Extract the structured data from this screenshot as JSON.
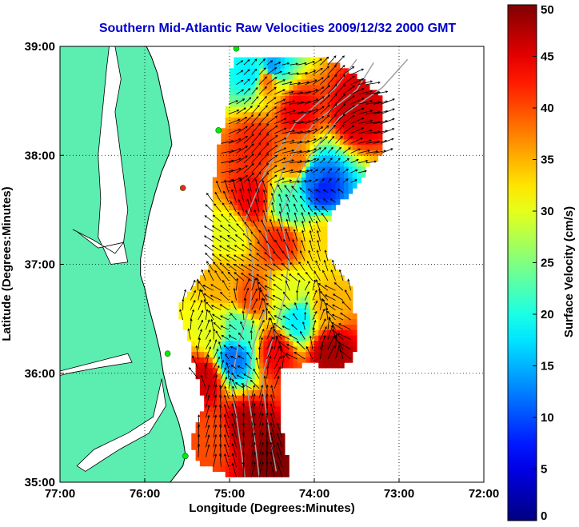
{
  "chart_data": {
    "type": "heatmap",
    "title": "Southern Mid-Atlantic Raw Velocities 2009/12/32 2000 GMT",
    "xlabel": "Longitude (Degrees:Minutes)",
    "ylabel": "Latitude (Degrees:Minutes)",
    "colorbar_label": "Surface Velocity (cm/s)",
    "xlim": [
      -77,
      -72
    ],
    "ylim": [
      35,
      39
    ],
    "clim": [
      0,
      50
    ],
    "x_ticks": [
      {
        "value": -77,
        "label": "77:00"
      },
      {
        "value": -76,
        "label": "76:00"
      },
      {
        "value": -75,
        "label": "75:00"
      },
      {
        "value": -74,
        "label": "74:00"
      },
      {
        "value": -73,
        "label": "73:00"
      },
      {
        "value": -72,
        "label": "72:00"
      }
    ],
    "y_ticks": [
      {
        "value": 35,
        "label": "35:00"
      },
      {
        "value": 36,
        "label": "36:00"
      },
      {
        "value": 37,
        "label": "37:00"
      },
      {
        "value": 38,
        "label": "38:00"
      },
      {
        "value": 39,
        "label": "39:00"
      }
    ],
    "colorbar_ticks": [
      0,
      5,
      10,
      15,
      20,
      25,
      30,
      35,
      40,
      45,
      50
    ],
    "grid": true,
    "grid_style": "dotted",
    "colormap": "jet",
    "land_color": "#5cedb1",
    "colors": {
      "title": "#0000cc",
      "vectors": "#000000",
      "stations": "#00ee00",
      "bathymetry": "#a0a0a0"
    },
    "coastline": [
      [
        -77.0,
        39.0
      ],
      [
        -75.98,
        39.0
      ],
      [
        -75.92,
        38.9
      ],
      [
        -75.85,
        38.75
      ],
      [
        -75.78,
        38.5
      ],
      [
        -75.72,
        38.3
      ],
      [
        -75.68,
        38.1
      ],
      [
        -75.72,
        38.0
      ],
      [
        -75.8,
        37.85
      ],
      [
        -75.88,
        37.65
      ],
      [
        -75.95,
        37.45
      ],
      [
        -76.0,
        37.25
      ],
      [
        -76.05,
        37.05
      ],
      [
        -76.05,
        36.9
      ],
      [
        -76.0,
        36.78
      ],
      [
        -75.95,
        36.6
      ],
      [
        -75.88,
        36.4
      ],
      [
        -75.82,
        36.2
      ],
      [
        -75.78,
        36.0
      ],
      [
        -75.72,
        35.8
      ],
      [
        -75.6,
        35.55
      ],
      [
        -75.55,
        35.4
      ],
      [
        -75.52,
        35.25
      ],
      [
        -75.55,
        35.15
      ],
      [
        -75.6,
        35.1
      ],
      [
        -75.65,
        35.05
      ],
      [
        -75.7,
        35.0
      ],
      [
        -77.0,
        35.0
      ]
    ],
    "bays": [
      [
        [
          -76.35,
          39.0
        ],
        [
          -76.28,
          38.7
        ],
        [
          -76.35,
          38.4
        ],
        [
          -76.3,
          38.1
        ],
        [
          -76.25,
          37.8
        ],
        [
          -76.2,
          37.5
        ],
        [
          -76.25,
          37.2
        ],
        [
          -76.2,
          37.02
        ],
        [
          -76.4,
          37.0
        ],
        [
          -76.55,
          37.25
        ],
        [
          -76.52,
          37.6
        ],
        [
          -76.55,
          38.0
        ],
        [
          -76.5,
          38.4
        ],
        [
          -76.45,
          38.8
        ],
        [
          -76.42,
          39.0
        ]
      ],
      [
        [
          -76.25,
          37.2
        ],
        [
          -76.55,
          37.15
        ],
        [
          -76.8,
          37.3
        ],
        [
          -76.85,
          37.32
        ],
        [
          -76.6,
          37.22
        ],
        [
          -76.35,
          37.1
        ]
      ],
      [
        [
          -76.15,
          36.1
        ],
        [
          -76.55,
          36.05
        ],
        [
          -76.9,
          36.0
        ],
        [
          -77.0,
          35.98
        ],
        [
          -77.0,
          36.02
        ],
        [
          -76.6,
          36.1
        ],
        [
          -76.2,
          36.18
        ]
      ],
      [
        [
          -75.8,
          35.95
        ],
        [
          -75.9,
          35.6
        ],
        [
          -76.2,
          35.45
        ],
        [
          -76.6,
          35.3
        ],
        [
          -76.8,
          35.15
        ],
        [
          -76.7,
          35.1
        ],
        [
          -76.3,
          35.3
        ],
        [
          -75.95,
          35.45
        ],
        [
          -75.75,
          35.7
        ]
      ]
    ],
    "bathymetry_contours": [
      [
        [
          -74.65,
          35.05
        ],
        [
          -74.72,
          35.5
        ],
        [
          -74.8,
          35.9
        ],
        [
          -74.72,
          36.25
        ],
        [
          -74.55,
          36.65
        ],
        [
          -74.5,
          37.0
        ],
        [
          -74.6,
          37.4
        ],
        [
          -74.35,
          37.9
        ],
        [
          -74.0,
          38.3
        ],
        [
          -73.5,
          38.6
        ],
        [
          -73.3,
          38.85
        ]
      ],
      [
        [
          -74.45,
          35.1
        ],
        [
          -74.55,
          35.55
        ],
        [
          -74.62,
          35.95
        ],
        [
          -74.5,
          36.3
        ],
        [
          -74.35,
          36.7
        ],
        [
          -74.3,
          37.05
        ],
        [
          -74.4,
          37.45
        ],
        [
          -74.1,
          37.95
        ],
        [
          -73.7,
          38.35
        ],
        [
          -73.2,
          38.62
        ],
        [
          -72.9,
          38.88
        ]
      ],
      [
        [
          -74.82,
          35.05
        ],
        [
          -74.9,
          35.5
        ],
        [
          -74.98,
          35.9
        ],
        [
          -74.9,
          36.25
        ],
        [
          -74.75,
          36.65
        ],
        [
          -74.72,
          37.0
        ],
        [
          -74.82,
          37.4
        ],
        [
          -74.58,
          37.85
        ],
        [
          -74.22,
          38.3
        ],
        [
          -73.75,
          38.62
        ],
        [
          -73.5,
          38.88
        ]
      ]
    ],
    "coverage_outline": [
      [
        -74.95,
        38.9
      ],
      [
        -74.6,
        38.9
      ],
      [
        -73.85,
        38.88
      ],
      [
        -73.55,
        38.75
      ],
      [
        -73.3,
        38.6
      ],
      [
        -73.2,
        38.5
      ],
      [
        -73.2,
        38.0
      ],
      [
        -73.3,
        37.95
      ],
      [
        -73.4,
        37.85
      ],
      [
        -73.58,
        37.65
      ],
      [
        -73.8,
        37.5
      ],
      [
        -73.85,
        37.3
      ],
      [
        -73.85,
        37.05
      ],
      [
        -73.7,
        36.95
      ],
      [
        -73.55,
        36.75
      ],
      [
        -73.5,
        36.3
      ],
      [
        -73.55,
        36.1
      ],
      [
        -73.72,
        36.05
      ],
      [
        -73.9,
        36.05
      ],
      [
        -74.0,
        36.1
      ],
      [
        -74.4,
        36.02
      ],
      [
        -74.42,
        35.6
      ],
      [
        -74.35,
        35.4
      ],
      [
        -74.3,
        35.05
      ],
      [
        -75.0,
        35.05
      ],
      [
        -75.15,
        35.1
      ],
      [
        -75.4,
        35.2
      ],
      [
        -75.45,
        35.4
      ],
      [
        -75.3,
        35.7
      ],
      [
        -75.4,
        36.0
      ],
      [
        -75.45,
        36.25
      ],
      [
        -75.55,
        36.45
      ],
      [
        -75.6,
        36.55
      ],
      [
        -75.55,
        36.7
      ],
      [
        -75.3,
        36.9
      ],
      [
        -75.2,
        37.0
      ],
      [
        -75.2,
        37.25
      ],
      [
        -75.2,
        37.55
      ],
      [
        -75.15,
        38.0
      ],
      [
        -75.05,
        38.3
      ],
      [
        -75.0,
        38.55
      ],
      [
        -74.98,
        38.75
      ]
    ],
    "speed_anchors": [
      {
        "lon": -74.55,
        "lat": 38.7,
        "speed": 38
      },
      {
        "lon": -74.5,
        "lat": 38.8,
        "speed": 14
      },
      {
        "lon": -74.75,
        "lat": 38.75,
        "speed": 18
      },
      {
        "lon": -74.2,
        "lat": 38.4,
        "speed": 44
      },
      {
        "lon": -73.5,
        "lat": 38.4,
        "speed": 46
      },
      {
        "lon": -74.7,
        "lat": 38.1,
        "speed": 42
      },
      {
        "lon": -74.2,
        "lat": 37.95,
        "speed": 38
      },
      {
        "lon": -73.9,
        "lat": 37.7,
        "speed": 8
      },
      {
        "lon": -74.0,
        "lat": 37.8,
        "speed": 12
      },
      {
        "lon": -74.3,
        "lat": 37.55,
        "speed": 22
      },
      {
        "lon": -74.75,
        "lat": 37.6,
        "speed": 44
      },
      {
        "lon": -73.9,
        "lat": 37.25,
        "speed": 33
      },
      {
        "lon": -74.4,
        "lat": 37.2,
        "speed": 42
      },
      {
        "lon": -75.0,
        "lat": 37.3,
        "speed": 30
      },
      {
        "lon": -75.1,
        "lat": 36.8,
        "speed": 35
      },
      {
        "lon": -74.75,
        "lat": 36.7,
        "speed": 40
      },
      {
        "lon": -74.3,
        "lat": 36.75,
        "speed": 30
      },
      {
        "lon": -74.2,
        "lat": 36.5,
        "speed": 18
      },
      {
        "lon": -73.85,
        "lat": 36.6,
        "speed": 35
      },
      {
        "lon": -74.95,
        "lat": 36.15,
        "speed": 12
      },
      {
        "lon": -74.9,
        "lat": 36.4,
        "speed": 22
      },
      {
        "lon": -74.45,
        "lat": 36.2,
        "speed": 44
      },
      {
        "lon": -73.8,
        "lat": 36.2,
        "speed": 48
      },
      {
        "lon": -75.2,
        "lat": 36.4,
        "speed": 30
      },
      {
        "lon": -75.3,
        "lat": 35.95,
        "speed": 46
      },
      {
        "lon": -74.8,
        "lat": 35.5,
        "speed": 48
      },
      {
        "lon": -74.5,
        "lat": 35.2,
        "speed": 50
      },
      {
        "lon": -75.2,
        "lat": 35.4,
        "speed": 40
      }
    ],
    "stations": [
      {
        "lon": -74.92,
        "lat": 38.98,
        "color": "#00ee00"
      },
      {
        "lon": -75.13,
        "lat": 38.23,
        "color": "#00ee00"
      },
      {
        "lon": -75.55,
        "lat": 37.7,
        "color": "#ff2020"
      },
      {
        "lon": -75.73,
        "lat": 36.18,
        "color": "#00ee00"
      },
      {
        "lon": -75.52,
        "lat": 35.24,
        "color": "#00ee00"
      }
    ]
  }
}
